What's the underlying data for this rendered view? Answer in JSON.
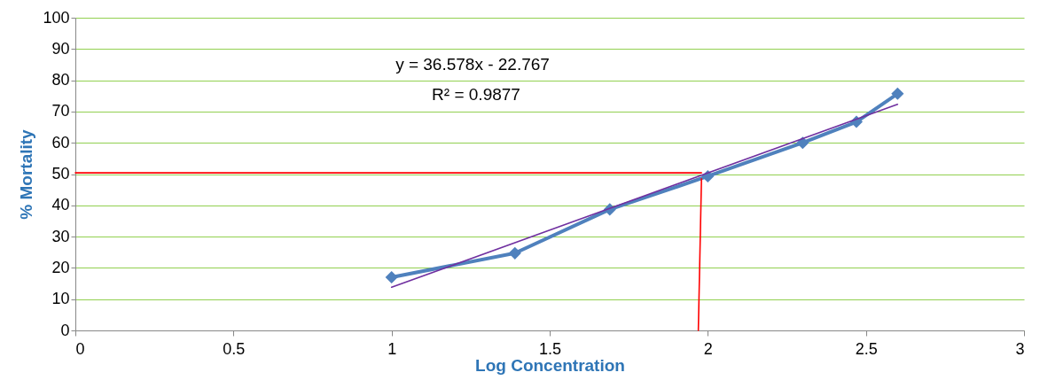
{
  "chart_data": {
    "type": "line",
    "xlabel": "Log Concentration",
    "ylabel": "% Mortality",
    "annotations": [
      "y = 36.578x - 22.767",
      "R² = 0.9877"
    ],
    "xlim": [
      0,
      3
    ],
    "xticks": [
      0,
      0.5,
      1,
      1.5,
      2,
      2.5,
      3
    ],
    "ylim": [
      0,
      100
    ],
    "yticks": [
      0,
      10,
      20,
      30,
      40,
      50,
      60,
      70,
      80,
      90,
      100
    ],
    "grid": "y",
    "series": [
      {
        "x": [
          1,
          1.39,
          1.69,
          2,
          2.3,
          2.47,
          2.6
        ],
        "values": [
          17,
          24.7,
          38.7,
          49.3,
          60,
          66.7,
          75.7
        ],
        "color": "#4f81bd",
        "marker": "diamond"
      },
      {
        "type": "line",
        "x": [
          1,
          2.6
        ],
        "values": [
          13.8,
          72.3
        ],
        "color": "#7030a0",
        "marker": "none"
      },
      {
        "type": "line",
        "x": [
          0,
          1.98
        ],
        "values": [
          50.4,
          50.4
        ],
        "color": "#ff0000",
        "marker": "none"
      },
      {
        "type": "line",
        "x": [
          1.98,
          1.97
        ],
        "values": [
          48.5,
          0
        ],
        "color": "#ff0000",
        "marker": "none"
      }
    ]
  }
}
